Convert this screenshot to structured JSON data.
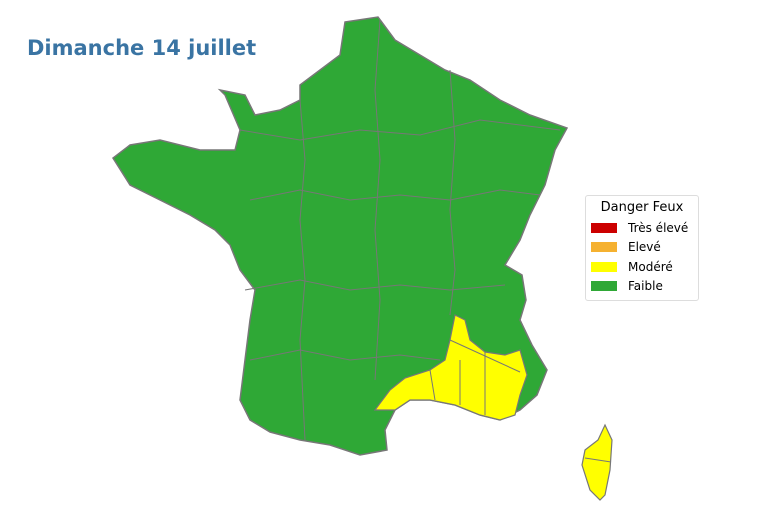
{
  "title": "Dimanche 14 juillet",
  "legend": {
    "title": "Danger Feux",
    "items": [
      {
        "label": "Très élevé",
        "color": "#cc0000"
      },
      {
        "label": "Elevé",
        "color": "#f5b130"
      },
      {
        "label": "Modéré",
        "color": "#ffff00"
      },
      {
        "label": "Faible",
        "color": "#2fa836"
      }
    ]
  },
  "map": {
    "border_color": "#777777",
    "regions": [
      {
        "name": "France métropolitaine (majorité)",
        "level": "Faible"
      },
      {
        "name": "Sud-Est / Provence",
        "level": "Modéré"
      },
      {
        "name": "Corse",
        "level": "Modéré"
      }
    ]
  }
}
